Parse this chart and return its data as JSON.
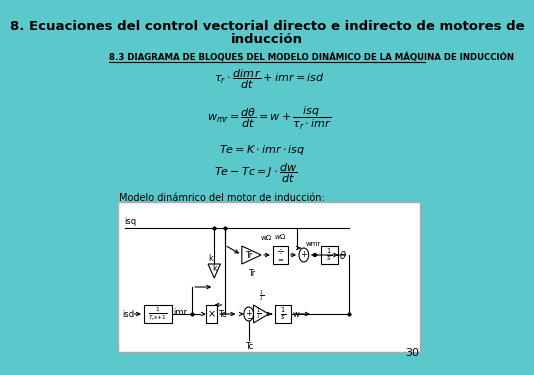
{
  "bg_color": "#5bc8cc",
  "title_line1": "8. Ecuaciones del control vectorial directo e indirecto de motores de",
  "title_line2": "inducción",
  "title_fontsize": 9.5,
  "subtitle": "8.3 DIAGRAMA DE BLOQUES DEL MODELO DINÁMICO DE LA MÁQUINA DE INDUCCIÓN",
  "subtitle_fontsize": 6.2,
  "label_model": "Modelo dinámrico del motor de inducción:",
  "page_number": "30",
  "diagram_line_color": "#000000",
  "text_color": "#000000",
  "eq_fontsize": 8,
  "label_fontsize": 7
}
